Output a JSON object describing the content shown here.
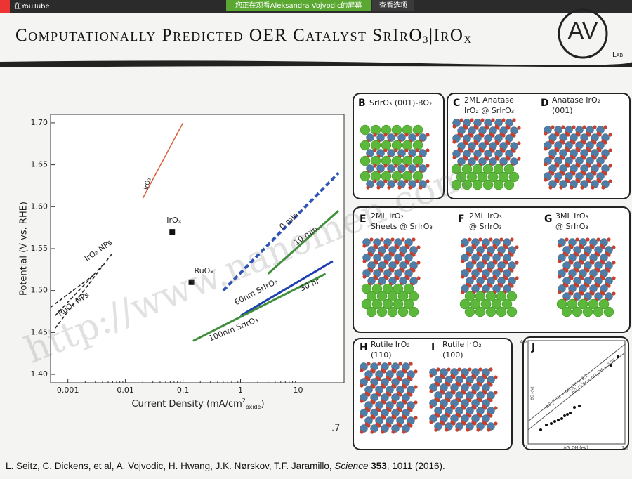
{
  "top_bar": {
    "label": "在YouTube",
    "notice": "您正在观看Aleksandra Vojvodic的屏幕",
    "button": "查看选项"
  },
  "slide": {
    "title_parts": [
      "Computationally Predicted OER Catalyst SrIrO",
      "3",
      "|IrO",
      "X"
    ],
    "logo": {
      "text": "AV",
      "sub": "Lab"
    },
    "watermark": "http://www.nanomen.com",
    "page_number": ".7",
    "citation": {
      "authors": "L. Seitz, C. Dickens, et al, A. Vojvodic, H. Hwang, J.K. Nørskov, T.F. Jaramillo, ",
      "journal": "Science",
      "volume": "353",
      "rest": ", 1011 (2016)."
    }
  },
  "chart": {
    "type": "line",
    "ylabel": "Potential (V vs. RHE)",
    "xlabel_parts": [
      "Current Density (mA/cm",
      "2",
      "oxide",
      ")"
    ],
    "xscale": "log",
    "xlim": [
      0.0005,
      63
    ],
    "ylim": [
      1.39,
      1.71
    ],
    "xticks": [
      0.001,
      0.01,
      0.1,
      1,
      10
    ],
    "yticks": [
      {
        "value": 1.4,
        "label": "1.40"
      },
      {
        "value": 1.45,
        "label": "1.45"
      },
      {
        "value": 1.5,
        "label": "1.50"
      },
      {
        "value": 1.55,
        "label": "1.55"
      },
      {
        "value": 1.6,
        "label": "1.60"
      },
      {
        "value": 1.65,
        "label": "1.65"
      },
      {
        "value": 1.7,
        "label": "1.70"
      }
    ],
    "series": [
      {
        "color": "#d9603b",
        "dashed": false,
        "x": [
          0.02,
          0.1
        ],
        "y": [
          1.61,
          1.7
        ]
      },
      {
        "color": "#2f55b5",
        "dashed": true,
        "x": [
          0.5,
          50
        ],
        "y": [
          1.5,
          1.64
        ]
      },
      {
        "color": "#3f8f3a",
        "dashed": false,
        "x": [
          3,
          50
        ],
        "y": [
          1.52,
          1.595
        ]
      },
      {
        "color": "#1f3fb0",
        "dashed": false,
        "x": [
          1,
          40
        ],
        "y": [
          1.47,
          1.535
        ]
      },
      {
        "color": "#3f8f3a",
        "dashed": false,
        "x": [
          0.15,
          30
        ],
        "y": [
          1.44,
          1.52
        ]
      },
      {
        "color": "#222222",
        "dashed": true,
        "x": [
          0.0006,
          0.006
        ],
        "y": [
          1.455,
          1.545
        ]
      },
      {
        "color": "#222222",
        "dashed": true,
        "x": [
          0.0006,
          0.004
        ],
        "y": [
          1.47,
          1.53
        ]
      },
      {
        "color": "#222222",
        "dashed": true,
        "x": [
          0.0005,
          0.003
        ],
        "y": [
          1.48,
          1.52
        ]
      }
    ],
    "points": [
      {
        "label": "IrOₓ",
        "x": 0.065,
        "y": 1.57
      },
      {
        "label": "RuOₓ",
        "x": 0.14,
        "y": 1.51
      }
    ],
    "annotations": [
      "IrO₂",
      "IrO₂ NPs",
      "RuO₂ NPs",
      "0 min",
      "10 min",
      "60nm SrIrO₃",
      "30 hr",
      "100nm SrIrO₃"
    ]
  },
  "panels": [
    {
      "letter": "B",
      "lines": [
        "SrIrO₃ (001)-BO₂"
      ]
    },
    {
      "letter": "C",
      "lines": [
        "2ML Anatase",
        "IrO₂ @ SrIrO₃"
      ]
    },
    {
      "letter": "D",
      "lines": [
        "Anatase IrO₂",
        "(001)"
      ]
    },
    {
      "letter": "E",
      "lines": [
        "2ML IrO₂",
        "Sheets @ SrIrO₃"
      ]
    },
    {
      "letter": "F",
      "lines": [
        "2ML IrO₃",
        "@ SrIrO₃"
      ]
    },
    {
      "letter": "G",
      "lines": [
        "3ML IrO₃",
        "@ SrIrO₃"
      ]
    },
    {
      "letter": "H",
      "lines": [
        "Rutile IrO₂",
        "(110)"
      ]
    },
    {
      "letter": "I",
      "lines": [
        "Rutile IrO₂",
        "(100)"
      ]
    },
    {
      "letter": "J",
      "lines": []
    }
  ],
  "inset": {
    "y_top": "4.0",
    "origin": "0",
    "x_right": "1.6",
    "xlabel": "ΔG_OH (eV)",
    "ylabel": "ΔG (eV)",
    "fit1": "ΔG_OOH = ΔG_OH + 3.2",
    "fit2": "ΔG_OOH = ΔG_OH + 2.98"
  }
}
